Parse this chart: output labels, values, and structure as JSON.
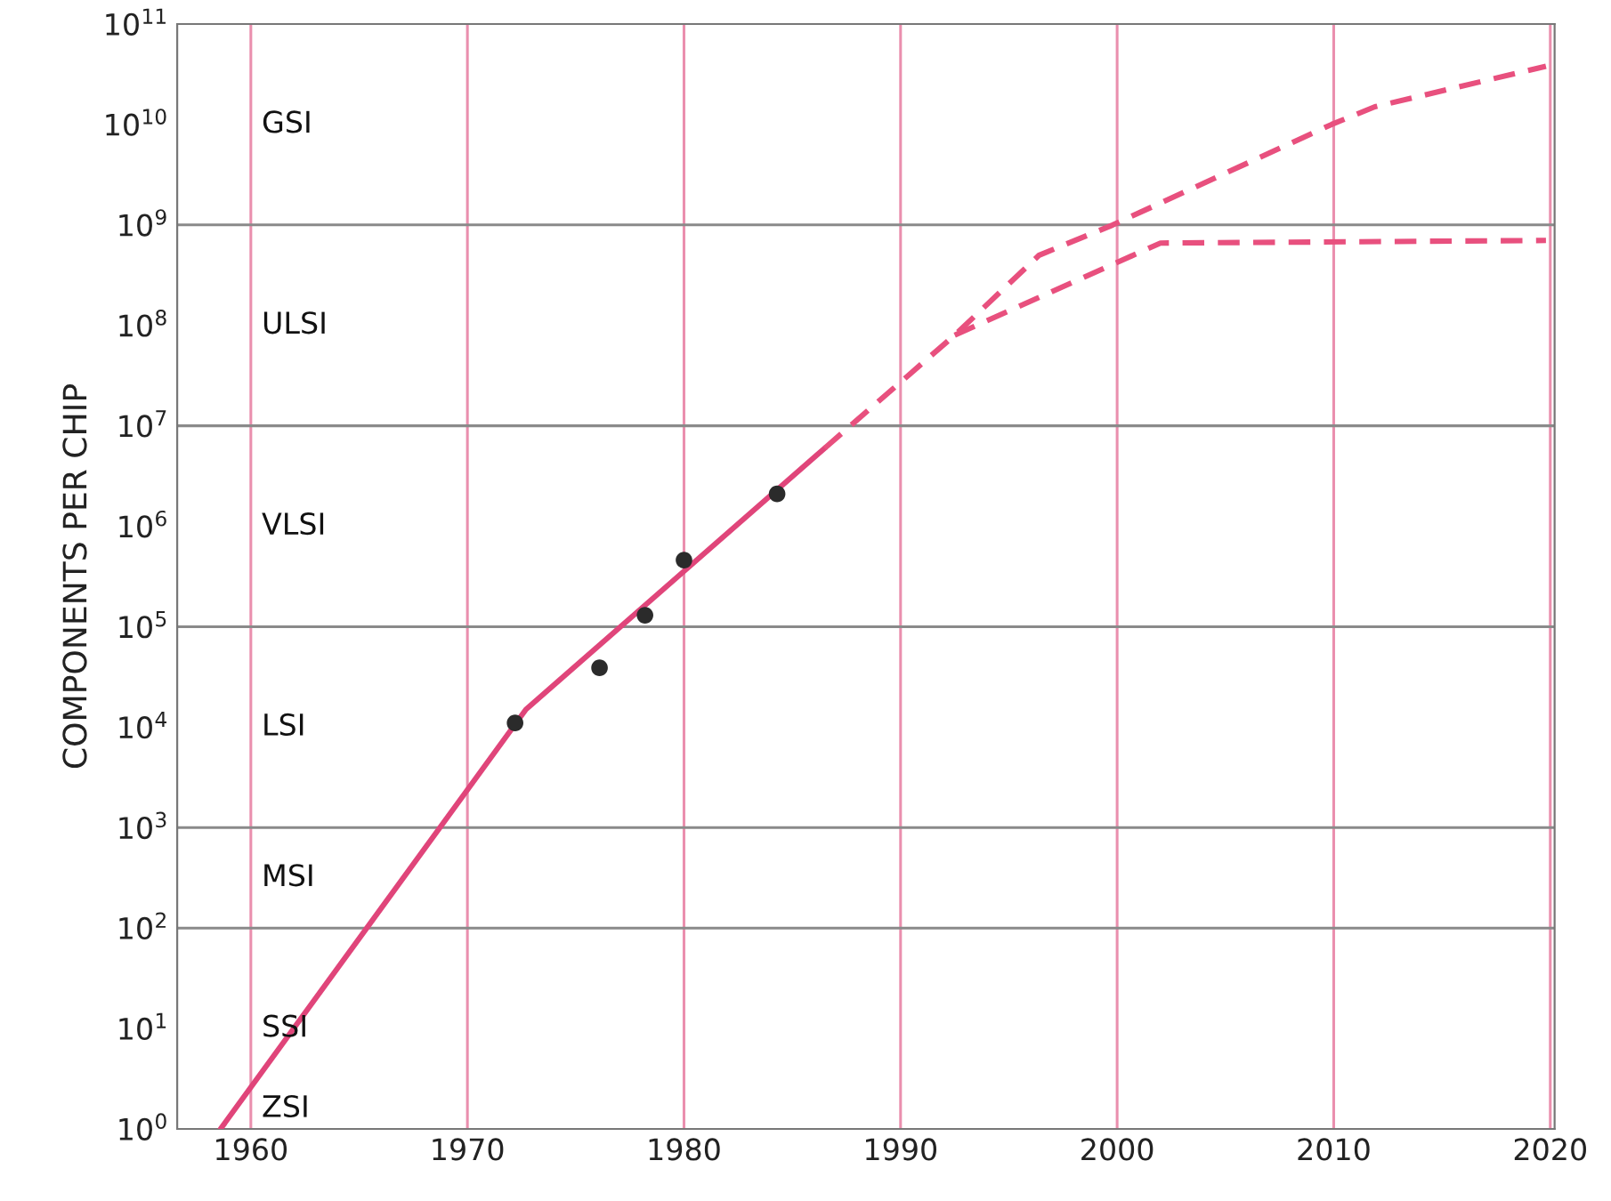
{
  "chart_data": {
    "type": "line",
    "ylabel": "COMPONENTS PER CHIP",
    "log": "y",
    "grid": "x",
    "xlim": [
      1956.6,
      2020.2
    ],
    "xticks": [
      1960,
      1970,
      1980,
      1990,
      2000,
      2010,
      2020
    ],
    "ylim": [
      1,
      100000000000.0
    ],
    "yticks": [
      {
        "value": 1,
        "label": "10$^{0}$"
      },
      {
        "value": 10,
        "label": "10$^{1}$"
      },
      {
        "value": 100,
        "label": "10$^{2}$"
      },
      {
        "value": 1000,
        "label": "10$^{3}$"
      },
      {
        "value": 10000.0,
        "label": "10$^{4}$"
      },
      {
        "value": 100000.0,
        "label": "10$^{5}$"
      },
      {
        "value": 1000000.0,
        "label": "10$^{6}$"
      },
      {
        "value": 10000000.0,
        "label": "10$^{7}$"
      },
      {
        "value": 100000000.0,
        "label": "10$^{8}$"
      },
      {
        "value": 1000000000.0,
        "label": "10$^{9}$"
      },
      {
        "value": 10000000000.0,
        "label": "10$^{10}$"
      },
      {
        "value": 100000000000.0,
        "label": "10$^{11}$"
      }
    ],
    "series": [
      {
        "line_style": "solid",
        "color": "#e0457a",
        "x": [
          1958.6,
          1972.7,
          1986.5
        ],
        "values": [
          1,
          15000,
          6000000
        ]
      },
      {
        "line_style": "dashed",
        "color": "#e8507e",
        "x": [
          1986.5,
          1992.5,
          1996.4,
          1999.8,
          2009.9,
          2011.9,
          2019.8
        ],
        "values": [
          6000000,
          80000000,
          500000000,
          1000000000,
          10000000000,
          15000000000,
          38000000000
        ]
      },
      {
        "line_style": "dashed",
        "color": "#e8507e",
        "x": [
          1992.5,
          2002,
          2019.8
        ],
        "values": [
          80000000,
          660000000,
          700000000
        ]
      },
      {
        "type": "scatter",
        "marker": "circle",
        "color": "#2b2b2b",
        "x": [
          1972.2,
          1976.1,
          1978.2,
          1980.0,
          1984.3
        ],
        "values": [
          11000,
          39000,
          130000,
          460000,
          2100000
        ]
      }
    ],
    "ref_lines": [
      {
        "axis": "y",
        "value": 100,
        "color": "#8a8a8a"
      },
      {
        "axis": "y",
        "value": 1000,
        "color": "#8a8a8a"
      },
      {
        "axis": "y",
        "value": 100000,
        "color": "#8a8a8a"
      },
      {
        "axis": "y",
        "value": 10000000,
        "color": "#8a8a8a"
      },
      {
        "axis": "y",
        "value": 1000000000,
        "color": "#8a8a8a"
      }
    ],
    "annotations": [
      "GSI",
      "ULSI",
      "VLSI",
      "LSI",
      "MSI",
      "SSI",
      "ZSI"
    ]
  }
}
